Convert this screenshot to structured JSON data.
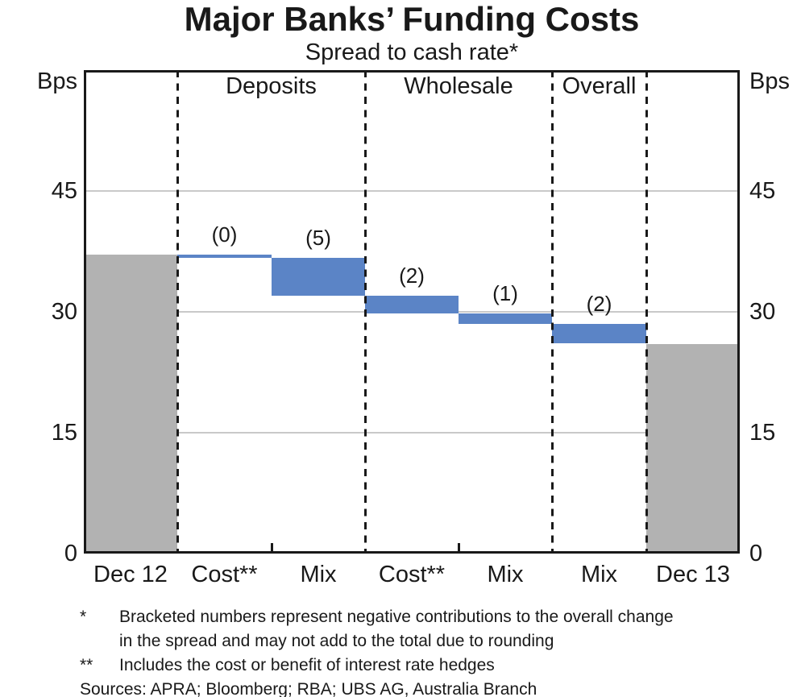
{
  "title": "Major Banks’ Funding Costs",
  "subtitle": "Spread to cash rate*",
  "axis": {
    "unit_left": "Bps",
    "unit_right": "Bps"
  },
  "colors": {
    "bar_blue": "#5b84c6",
    "bar_gray": "#b2b2b2",
    "gridline": "#c9c9c9",
    "ink": "#191919"
  },
  "chart_data": {
    "type": "bar",
    "subtype": "waterfall",
    "title": "Major Banks’ Funding Costs",
    "subtitle": "Spread to cash rate*",
    "ylabel": "Bps",
    "ylim": [
      0,
      60
    ],
    "yticks": [
      0,
      15,
      30,
      45
    ],
    "grid": "horizontal",
    "columns": [
      {
        "x_label": "Dec 12",
        "kind": "total",
        "start": 0,
        "end": 37.1,
        "color": "gray"
      },
      {
        "x_label": "Cost**",
        "kind": "change",
        "start": 37.1,
        "end": 36.7,
        "annotation": "(0)",
        "section": "Deposits",
        "color": "blue"
      },
      {
        "x_label": "Mix",
        "kind": "change",
        "start": 36.7,
        "end": 32.0,
        "annotation": "(5)",
        "section": "Deposits",
        "color": "blue"
      },
      {
        "x_label": "Cost**",
        "kind": "change",
        "start": 32.0,
        "end": 29.8,
        "annotation": "(2)",
        "section": "Wholesale",
        "color": "blue"
      },
      {
        "x_label": "Mix",
        "kind": "change",
        "start": 29.8,
        "end": 28.5,
        "annotation": "(1)",
        "section": "Wholesale",
        "color": "blue"
      },
      {
        "x_label": "Mix",
        "kind": "change",
        "start": 28.5,
        "end": 26.1,
        "annotation": "(2)",
        "section": "Overall",
        "color": "blue"
      },
      {
        "x_label": "Dec 13",
        "kind": "total",
        "start": 0,
        "end": 26.0,
        "color": "gray"
      }
    ],
    "sections": [
      {
        "label": "Deposits",
        "col_start": 1,
        "col_end": 2
      },
      {
        "label": "Wholesale",
        "col_start": 3,
        "col_end": 4
      },
      {
        "label": "Overall",
        "col_start": 5,
        "col_end": 5
      }
    ],
    "separators": {
      "dashed_boundaries": [
        1,
        3,
        5,
        6
      ],
      "tick_boundaries": [
        2,
        4
      ]
    }
  },
  "footnotes": [
    {
      "marker": "*",
      "text": "Bracketed numbers represent negative contributions to the overall change\nin the spread and may not add to the total due to rounding"
    },
    {
      "marker": "**",
      "text": "Includes the cost or benefit of interest rate hedges"
    }
  ],
  "sources": "Sources: APRA; Bloomberg; RBA; UBS AG, Australia Branch"
}
